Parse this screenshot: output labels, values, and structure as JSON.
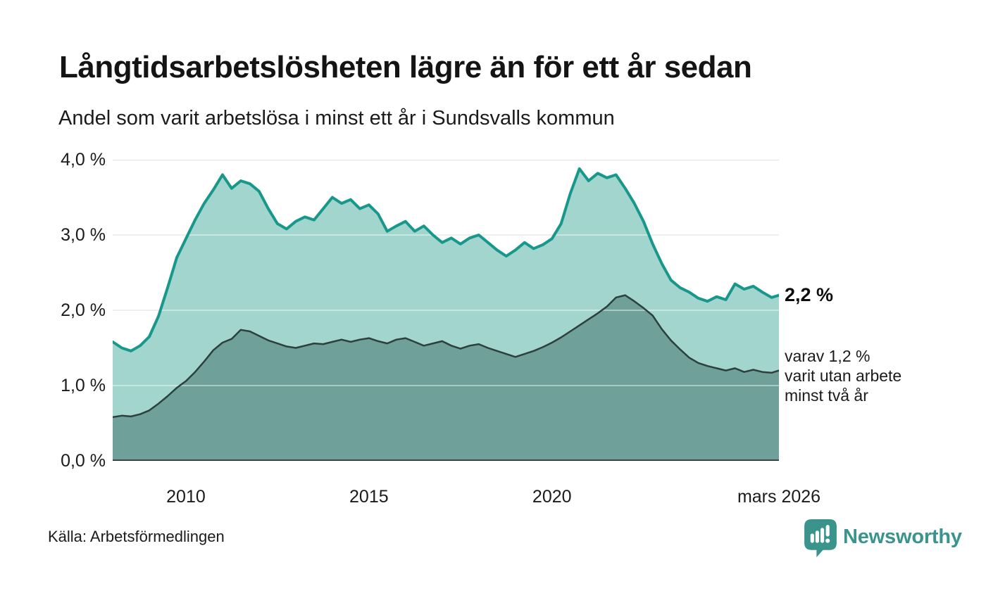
{
  "header": {
    "title": "Långtidsarbetslösheten lägre än för ett år sedan",
    "subtitle": "Andel som varit arbetslösa i minst ett år i Sundsvalls kommun"
  },
  "annotations": {
    "primary_value": "2,2 %",
    "secondary_lines": [
      "varav 1,2 %",
      "varit utan arbete",
      "minst två år"
    ]
  },
  "footer": {
    "source": "Källa: Arbetsförmedlingen",
    "brand": "Newsworthy"
  },
  "colors": {
    "accent_teal": "#17988b",
    "light_fill": "#a2d5ce",
    "dark_fill": "#6fa09a",
    "dark_line": "#2c403d",
    "grid": "#e2e2e5",
    "grid_over_fill": "rgba(255,255,255,0.42)",
    "baseline": "#2e3937",
    "brand_teal": "#3b948b",
    "text": "#1a1a1a"
  },
  "chart_data": {
    "type": "area",
    "title": "Långtidsarbetslösheten lägre än för ett år sedan",
    "subtitle": "Andel som varit arbetslösa i minst ett år i Sundsvalls kommun",
    "xlabel": "",
    "ylabel": "",
    "x_domain": [
      2008,
      2026.2
    ],
    "ylim": [
      0,
      4
    ],
    "grid": true,
    "legend": "none",
    "y_ticks": [
      {
        "value": 0,
        "label": "0,0 %"
      },
      {
        "value": 1,
        "label": "1,0 %"
      },
      {
        "value": 2,
        "label": "2,0 %"
      },
      {
        "value": 3,
        "label": "3,0 %"
      },
      {
        "value": 4,
        "label": "4,0 %"
      }
    ],
    "x_ticks": [
      {
        "year": 2010,
        "label": "2010"
      },
      {
        "year": 2015,
        "label": "2015"
      },
      {
        "year": 2020,
        "label": "2020"
      },
      {
        "year": 2026.2,
        "label": "mars 2026"
      }
    ],
    "x": [
      2008,
      2008.25,
      2008.5,
      2008.75,
      2009,
      2009.25,
      2009.5,
      2009.75,
      2010,
      2010.25,
      2010.5,
      2010.75,
      2011,
      2011.25,
      2011.5,
      2011.75,
      2012,
      2012.25,
      2012.5,
      2012.75,
      2013,
      2013.25,
      2013.5,
      2013.75,
      2014,
      2014.25,
      2014.5,
      2014.75,
      2015,
      2015.25,
      2015.5,
      2015.75,
      2016,
      2016.25,
      2016.5,
      2016.75,
      2017,
      2017.25,
      2017.5,
      2017.75,
      2018,
      2018.25,
      2018.5,
      2018.75,
      2019,
      2019.25,
      2019.5,
      2019.75,
      2020,
      2020.25,
      2020.5,
      2020.75,
      2021,
      2021.25,
      2021.5,
      2021.75,
      2022,
      2022.25,
      2022.5,
      2022.75,
      2023,
      2023.25,
      2023.5,
      2023.75,
      2024,
      2024.25,
      2024.5,
      2024.75,
      2025,
      2025.25,
      2025.5,
      2025.75,
      2026,
      2026.2
    ],
    "series": [
      {
        "name": "arbetslösa minst ett år",
        "end_label": "2,2 %",
        "line_color": "#17988b",
        "fill_color": "#a2d5ce",
        "line_width": 4,
        "values": [
          1.58,
          1.5,
          1.46,
          1.53,
          1.65,
          1.92,
          2.3,
          2.7,
          2.95,
          3.2,
          3.42,
          3.6,
          3.8,
          3.62,
          3.72,
          3.68,
          3.58,
          3.35,
          3.15,
          3.08,
          3.18,
          3.24,
          3.2,
          3.35,
          3.5,
          3.42,
          3.47,
          3.35,
          3.4,
          3.28,
          3.05,
          3.12,
          3.18,
          3.05,
          3.12,
          3.0,
          2.9,
          2.96,
          2.88,
          2.96,
          3.0,
          2.9,
          2.8,
          2.72,
          2.8,
          2.9,
          2.82,
          2.87,
          2.95,
          3.15,
          3.55,
          3.88,
          3.72,
          3.82,
          3.76,
          3.8,
          3.62,
          3.42,
          3.18,
          2.88,
          2.62,
          2.4,
          2.3,
          2.24,
          2.16,
          2.12,
          2.18,
          2.14,
          2.35,
          2.28,
          2.32,
          2.24,
          2.17,
          2.2
        ]
      },
      {
        "name": "varit utan arbete minst två år",
        "end_label": "varav 1,2 % varit utan arbete minst två år",
        "line_color": "#2c403d",
        "fill_color": "#6fa09a",
        "line_width": 2.5,
        "values": [
          0.58,
          0.6,
          0.59,
          0.62,
          0.67,
          0.76,
          0.86,
          0.97,
          1.06,
          1.18,
          1.32,
          1.47,
          1.57,
          1.62,
          1.74,
          1.72,
          1.66,
          1.6,
          1.56,
          1.52,
          1.5,
          1.53,
          1.56,
          1.55,
          1.58,
          1.61,
          1.58,
          1.61,
          1.63,
          1.59,
          1.56,
          1.61,
          1.63,
          1.58,
          1.53,
          1.56,
          1.59,
          1.53,
          1.49,
          1.53,
          1.55,
          1.5,
          1.46,
          1.42,
          1.38,
          1.42,
          1.46,
          1.51,
          1.57,
          1.64,
          1.72,
          1.8,
          1.88,
          1.96,
          2.05,
          2.17,
          2.2,
          2.12,
          2.03,
          1.93,
          1.75,
          1.6,
          1.48,
          1.37,
          1.3,
          1.26,
          1.23,
          1.2,
          1.23,
          1.18,
          1.21,
          1.18,
          1.17,
          1.2
        ]
      }
    ]
  }
}
